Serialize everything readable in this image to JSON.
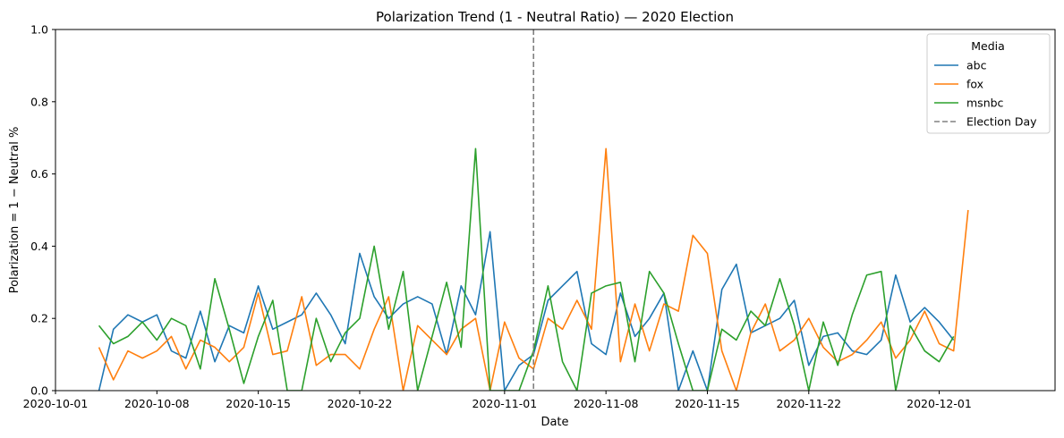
{
  "chart_data": {
    "type": "line",
    "title": "Polarization Trend (1 - Neutral Ratio) — 2020 Election",
    "xlabel": "Date",
    "ylabel": "Polarization = 1 − Neutral %",
    "x_start": "2020-10-01",
    "xlim": [
      "2020-10-01",
      "2020-12-09"
    ],
    "ylim": [
      0,
      1
    ],
    "x_ticks": [
      "2020-10-01",
      "2020-10-08",
      "2020-10-15",
      "2020-10-22",
      "2020-11-01",
      "2020-11-08",
      "2020-11-15",
      "2020-11-22",
      "2020-12-01"
    ],
    "y_ticks": [
      "0.0",
      "0.2",
      "0.4",
      "0.6",
      "0.8",
      "1.0"
    ],
    "legend": {
      "title": "Media",
      "position": "top-right"
    },
    "vline": {
      "date": "2020-11-03",
      "label": "Election Day",
      "color": "#808080",
      "style": "dashed"
    },
    "series": [
      {
        "name": "abc",
        "color": "#1f77b4",
        "points": [
          [
            "2020-10-04",
            0.0
          ],
          [
            "2020-10-05",
            0.17
          ],
          [
            "2020-10-06",
            0.21
          ],
          [
            "2020-10-07",
            0.19
          ],
          [
            "2020-10-08",
            0.21
          ],
          [
            "2020-10-09",
            0.11
          ],
          [
            "2020-10-10",
            0.09
          ],
          [
            "2020-10-11",
            0.22
          ],
          [
            "2020-10-12",
            0.08
          ],
          [
            "2020-10-13",
            0.18
          ],
          [
            "2020-10-14",
            0.16
          ],
          [
            "2020-10-15",
            0.29
          ],
          [
            "2020-10-16",
            0.17
          ],
          [
            "2020-10-17",
            0.19
          ],
          [
            "2020-10-18",
            0.21
          ],
          [
            "2020-10-19",
            0.27
          ],
          [
            "2020-10-20",
            0.21
          ],
          [
            "2020-10-21",
            0.13
          ],
          [
            "2020-10-22",
            0.38
          ],
          [
            "2020-10-23",
            0.26
          ],
          [
            "2020-10-24",
            0.2
          ],
          [
            "2020-10-25",
            0.24
          ],
          [
            "2020-10-26",
            0.26
          ],
          [
            "2020-10-27",
            0.24
          ],
          [
            "2020-10-28",
            0.1
          ],
          [
            "2020-10-29",
            0.29
          ],
          [
            "2020-10-30",
            0.21
          ],
          [
            "2020-10-31",
            0.44
          ],
          [
            "2020-11-01",
            0.0
          ],
          [
            "2020-11-02",
            0.07
          ],
          [
            "2020-11-03",
            0.1
          ],
          [
            "2020-11-04",
            0.25
          ],
          [
            "2020-11-05",
            0.29
          ],
          [
            "2020-11-06",
            0.33
          ],
          [
            "2020-11-07",
            0.13
          ],
          [
            "2020-11-08",
            0.1
          ],
          [
            "2020-11-09",
            0.27
          ],
          [
            "2020-11-10",
            0.15
          ],
          [
            "2020-11-11",
            0.2
          ],
          [
            "2020-11-12",
            0.27
          ],
          [
            "2020-11-13",
            0.0
          ],
          [
            "2020-11-14",
            0.11
          ],
          [
            "2020-11-15",
            0.0
          ],
          [
            "2020-11-16",
            0.28
          ],
          [
            "2020-11-17",
            0.35
          ],
          [
            "2020-11-18",
            0.16
          ],
          [
            "2020-11-19",
            0.18
          ],
          [
            "2020-11-20",
            0.2
          ],
          [
            "2020-11-21",
            0.25
          ],
          [
            "2020-11-22",
            0.07
          ],
          [
            "2020-11-23",
            0.15
          ],
          [
            "2020-11-24",
            0.16
          ],
          [
            "2020-11-25",
            0.11
          ],
          [
            "2020-11-26",
            0.1
          ],
          [
            "2020-11-27",
            0.14
          ],
          [
            "2020-11-28",
            0.32
          ],
          [
            "2020-11-29",
            0.19
          ],
          [
            "2020-11-30",
            0.23
          ],
          [
            "2020-12-01",
            0.19
          ],
          [
            "2020-12-02",
            0.14
          ]
        ]
      },
      {
        "name": "fox",
        "color": "#ff7f0e",
        "points": [
          [
            "2020-10-04",
            0.12
          ],
          [
            "2020-10-05",
            0.03
          ],
          [
            "2020-10-06",
            0.11
          ],
          [
            "2020-10-07",
            0.09
          ],
          [
            "2020-10-08",
            0.11
          ],
          [
            "2020-10-09",
            0.15
          ],
          [
            "2020-10-10",
            0.06
          ],
          [
            "2020-10-11",
            0.14
          ],
          [
            "2020-10-12",
            0.12
          ],
          [
            "2020-10-13",
            0.08
          ],
          [
            "2020-10-14",
            0.12
          ],
          [
            "2020-10-15",
            0.27
          ],
          [
            "2020-10-16",
            0.1
          ],
          [
            "2020-10-17",
            0.11
          ],
          [
            "2020-10-18",
            0.26
          ],
          [
            "2020-10-19",
            0.07
          ],
          [
            "2020-10-20",
            0.1
          ],
          [
            "2020-10-21",
            0.1
          ],
          [
            "2020-10-22",
            0.06
          ],
          [
            "2020-10-23",
            0.17
          ],
          [
            "2020-10-24",
            0.26
          ],
          [
            "2020-10-25",
            0.0
          ],
          [
            "2020-10-26",
            0.18
          ],
          [
            "2020-10-27",
            0.14
          ],
          [
            "2020-10-28",
            0.1
          ],
          [
            "2020-10-29",
            0.17
          ],
          [
            "2020-10-30",
            0.2
          ],
          [
            "2020-10-31",
            0.0
          ],
          [
            "2020-11-01",
            0.19
          ],
          [
            "2020-11-02",
            0.09
          ],
          [
            "2020-11-03",
            0.06
          ],
          [
            "2020-11-04",
            0.2
          ],
          [
            "2020-11-05",
            0.17
          ],
          [
            "2020-11-06",
            0.25
          ],
          [
            "2020-11-07",
            0.17
          ],
          [
            "2020-11-08",
            0.67
          ],
          [
            "2020-11-09",
            0.08
          ],
          [
            "2020-11-10",
            0.24
          ],
          [
            "2020-11-11",
            0.11
          ],
          [
            "2020-11-12",
            0.24
          ],
          [
            "2020-11-13",
            0.22
          ],
          [
            "2020-11-14",
            0.43
          ],
          [
            "2020-11-15",
            0.38
          ],
          [
            "2020-11-16",
            0.11
          ],
          [
            "2020-11-17",
            0.0
          ],
          [
            "2020-11-18",
            0.16
          ],
          [
            "2020-11-19",
            0.24
          ],
          [
            "2020-11-20",
            0.11
          ],
          [
            "2020-11-21",
            0.14
          ],
          [
            "2020-11-22",
            0.2
          ],
          [
            "2020-11-23",
            0.12
          ],
          [
            "2020-11-24",
            0.08
          ],
          [
            "2020-11-25",
            0.1
          ],
          [
            "2020-11-26",
            0.14
          ],
          [
            "2020-11-27",
            0.19
          ],
          [
            "2020-11-28",
            0.09
          ],
          [
            "2020-11-29",
            0.14
          ],
          [
            "2020-11-30",
            0.22
          ],
          [
            "2020-12-01",
            0.13
          ],
          [
            "2020-12-02",
            0.11
          ],
          [
            "2020-12-03",
            0.5
          ]
        ]
      },
      {
        "name": "msnbc",
        "color": "#2ca02c",
        "points": [
          [
            "2020-10-04",
            0.18
          ],
          [
            "2020-10-05",
            0.13
          ],
          [
            "2020-10-06",
            0.15
          ],
          [
            "2020-10-07",
            0.19
          ],
          [
            "2020-10-08",
            0.14
          ],
          [
            "2020-10-09",
            0.2
          ],
          [
            "2020-10-10",
            0.18
          ],
          [
            "2020-10-11",
            0.06
          ],
          [
            "2020-10-12",
            0.31
          ],
          [
            "2020-10-13",
            0.17
          ],
          [
            "2020-10-14",
            0.02
          ],
          [
            "2020-10-15",
            0.15
          ],
          [
            "2020-10-16",
            0.25
          ],
          [
            "2020-10-17",
            0.0
          ],
          [
            "2020-10-18",
            0.0
          ],
          [
            "2020-10-19",
            0.2
          ],
          [
            "2020-10-20",
            0.08
          ],
          [
            "2020-10-21",
            0.16
          ],
          [
            "2020-10-22",
            0.2
          ],
          [
            "2020-10-23",
            0.4
          ],
          [
            "2020-10-24",
            0.17
          ],
          [
            "2020-10-25",
            0.33
          ],
          [
            "2020-10-26",
            0.0
          ],
          [
            "2020-10-27",
            0.15
          ],
          [
            "2020-10-28",
            0.3
          ],
          [
            "2020-10-29",
            0.12
          ],
          [
            "2020-10-30",
            0.67
          ],
          [
            "2020-10-31",
            0.0
          ],
          [
            "2020-11-01",
            0.0
          ],
          [
            "2020-11-02",
            0.0
          ],
          [
            "2020-11-03",
            0.11
          ],
          [
            "2020-11-04",
            0.29
          ],
          [
            "2020-11-05",
            0.08
          ],
          [
            "2020-11-06",
            0.0
          ],
          [
            "2020-11-07",
            0.27
          ],
          [
            "2020-11-08",
            0.29
          ],
          [
            "2020-11-09",
            0.3
          ],
          [
            "2020-11-10",
            0.08
          ],
          [
            "2020-11-11",
            0.33
          ],
          [
            "2020-11-12",
            0.27
          ],
          [
            "2020-11-13",
            0.13
          ],
          [
            "2020-11-14",
            0.0
          ],
          [
            "2020-11-15",
            0.0
          ],
          [
            "2020-11-16",
            0.17
          ],
          [
            "2020-11-17",
            0.14
          ],
          [
            "2020-11-18",
            0.22
          ],
          [
            "2020-11-19",
            0.18
          ],
          [
            "2020-11-20",
            0.31
          ],
          [
            "2020-11-21",
            0.18
          ],
          [
            "2020-11-22",
            0.0
          ],
          [
            "2020-11-23",
            0.19
          ],
          [
            "2020-11-24",
            0.07
          ],
          [
            "2020-11-25",
            0.21
          ],
          [
            "2020-11-26",
            0.32
          ],
          [
            "2020-11-27",
            0.33
          ],
          [
            "2020-11-28",
            0.0
          ],
          [
            "2020-11-29",
            0.18
          ],
          [
            "2020-11-30",
            0.11
          ],
          [
            "2020-12-01",
            0.08
          ],
          [
            "2020-12-02",
            0.15
          ]
        ]
      }
    ]
  }
}
